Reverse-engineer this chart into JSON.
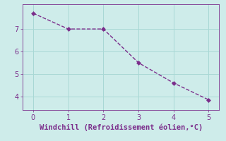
{
  "x": [
    0,
    1,
    2,
    3,
    4,
    5
  ],
  "y": [
    7.7,
    7.0,
    7.0,
    5.5,
    4.6,
    3.85
  ],
  "line_color": "#7B2D8B",
  "marker": "D",
  "marker_size": 3,
  "line_width": 1.0,
  "linestyle": "--",
  "xlabel": "Windchill (Refroidissement éolien,°C)",
  "xlabel_color": "#7B2D8B",
  "xlabel_fontsize": 7.5,
  "bg_color": "#CEECEA",
  "grid_color": "#A8D8D5",
  "tick_color": "#7B2D8B",
  "tick_fontsize": 7,
  "xlim": [
    -0.3,
    5.3
  ],
  "ylim": [
    3.4,
    8.1
  ],
  "yticks": [
    4,
    5,
    6,
    7
  ],
  "xticks": [
    0,
    1,
    2,
    3,
    4,
    5
  ]
}
